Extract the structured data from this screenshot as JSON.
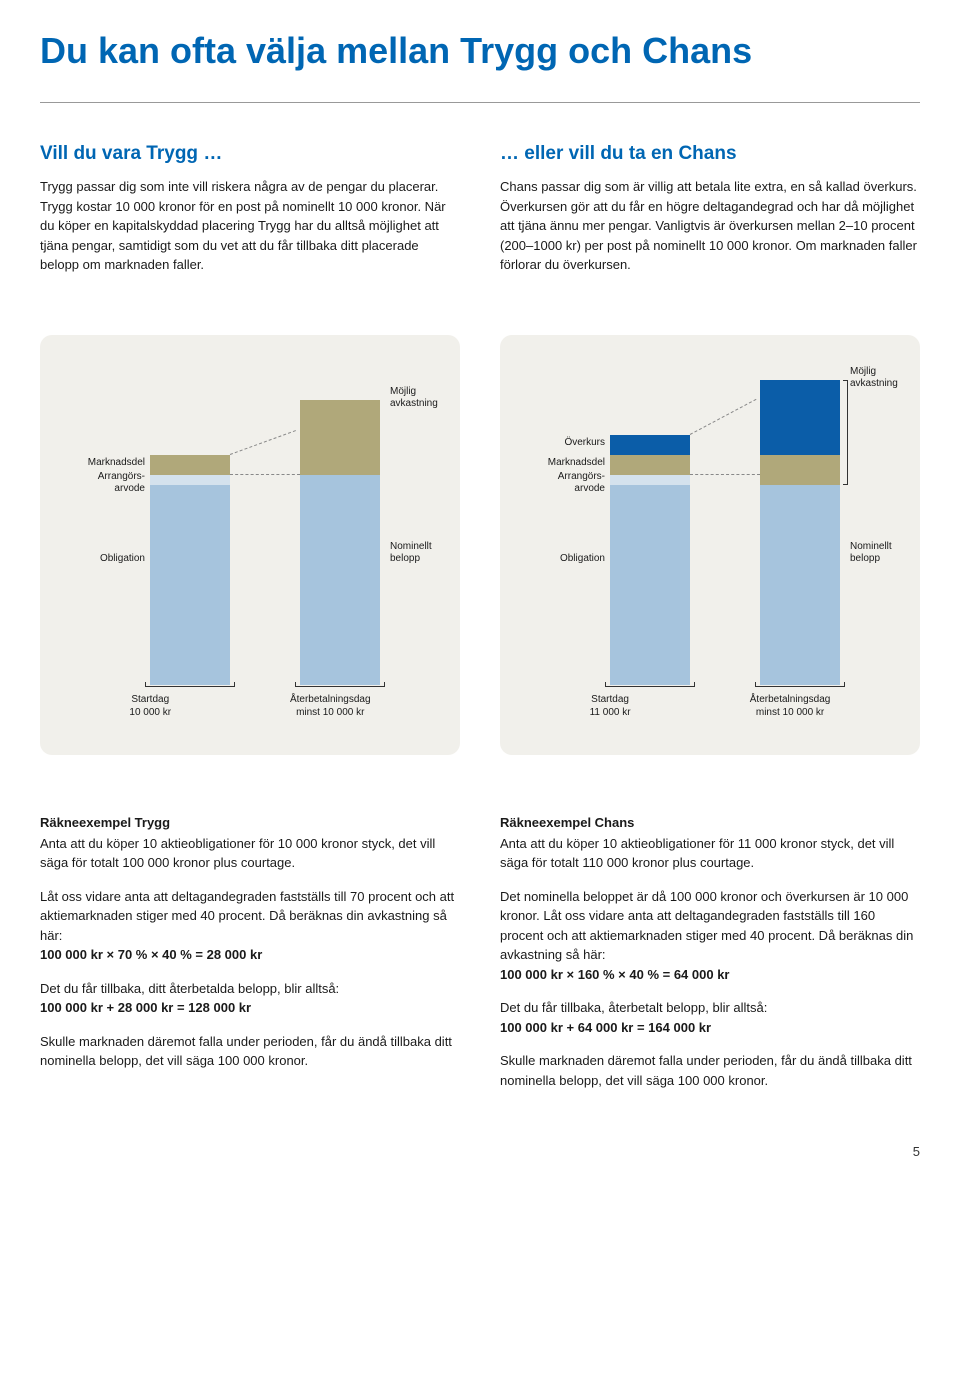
{
  "title": "Du kan ofta välja mellan Trygg och Chans",
  "left_intro": {
    "heading": "Vill du vara Trygg …",
    "text": "Trygg passar dig som inte vill riskera några av de pengar du placerar. Trygg kostar 10 000 kronor för en post på nominellt 10 000 kronor. När du köper en kapitalskyddad placering Trygg har du alltså möjlighet att tjäna pengar, samtidigt som du vet att du får tillbaka ditt placerade belopp om marknaden faller."
  },
  "right_intro": {
    "heading": "… eller vill du ta en Chans",
    "text": "Chans passar dig som är villig att betala lite extra, en så kallad överkurs. Överkursen gör att du får en högre deltagandegrad och har då möjlighet att tjäna ännu mer pengar. Vanligtvis är överkursen mellan 2–10 procent (200–1000 kr) per post på nominellt 10 000 kronor. Om marknaden faller förlorar du överkursen."
  },
  "chart_trygg": {
    "bar1": {
      "obligation_h": 200,
      "obligation_color": "#a6c4dd",
      "arrang_h": 10,
      "arrang_color": "#d4e2ed",
      "marknad_h": 20,
      "marknad_color": "#b0a87a"
    },
    "bar2": {
      "nominellt_h": 210,
      "nominellt_color": "#a6c4dd",
      "avkast_h": 75,
      "avkast_color": "#b0a87a"
    },
    "labels": {
      "marknadsdel": "Marknadsdel",
      "arrang": "Arrangörs-\narvode",
      "obligation": "Obligation",
      "avkast": "Möjlig\navkastning",
      "nominellt": "Nominellt\nbelopp",
      "start_t": "Startdag",
      "start_v": "10 000 kr",
      "end_t": "Återbetalningsdag",
      "end_v": "minst 10 000 kr"
    }
  },
  "chart_chans": {
    "bar1": {
      "obligation_h": 200,
      "obligation_color": "#a6c4dd",
      "arrang_h": 10,
      "arrang_color": "#d4e2ed",
      "marknad_h": 20,
      "marknad_color": "#b0a87a",
      "overkurs_h": 20,
      "overkurs_color": "#0b5da8"
    },
    "bar2": {
      "nominellt_h": 200,
      "nominellt_color": "#a6c4dd",
      "avkast_low_h": 30,
      "avkast_low_color": "#b0a87a",
      "avkast_high_h": 75,
      "avkast_high_color": "#0b5da8"
    },
    "labels": {
      "overkurs": "Överkurs",
      "marknadsdel": "Marknadsdel",
      "arrang": "Arrangörs-\narvode",
      "obligation": "Obligation",
      "avkast": "Möjlig\navkastning",
      "nominellt": "Nominellt\nbelopp",
      "start_t": "Startdag",
      "start_v": "11 000 kr",
      "end_t": "Återbetalningsdag",
      "end_v": "minst 10 000 kr"
    }
  },
  "calc_trygg": {
    "heading": "Räkneexempel Trygg",
    "p1": "Anta att du köper 10 aktieobligationer för 10 000 kronor styck, det vill säga för totalt 100 000 kronor plus courtage.",
    "p2": "Låt oss vidare anta att deltagandegraden fastställs till 70 procent och att aktiemarknaden stiger med 40 procent. Då beräknas din avkastning så här:",
    "f1": "100 000 kr × 70 % × 40 % = 28 000 kr",
    "p3": "Det du får tillbaka, ditt återbetalda belopp, blir alltså:",
    "f2": "100 000 kr + 28 000 kr = 128 000 kr",
    "p4": "Skulle marknaden däremot falla under perioden, får du ändå tillbaka ditt nominella belopp, det vill säga 100 000 kronor."
  },
  "calc_chans": {
    "heading": "Räkneexempel Chans",
    "p1": "Anta att du köper 10 aktieobligationer för 11 000 kronor styck, det vill säga för totalt 110 000 kronor plus courtage.",
    "p2": "Det nominella beloppet är då 100 000 kronor och överkursen är 10 000 kronor. Låt oss vidare anta att deltagandegraden fastställs till 160 procent och att aktiemarknaden stiger med 40 procent. Då beräknas din avkastning så här:",
    "f1": "100 000 kr × 160 % × 40 % = 64 000 kr",
    "p3": "Det du får tillbaka, återbetalt belopp, blir alltså:",
    "f2": "100 000 kr + 64 000 kr = 164 000 kr",
    "p4": "Skulle marknaden däremot falla under perioden, får du ändå tillbaka ditt nominella belopp, det vill säga 100 000 kronor."
  },
  "page_number": "5"
}
